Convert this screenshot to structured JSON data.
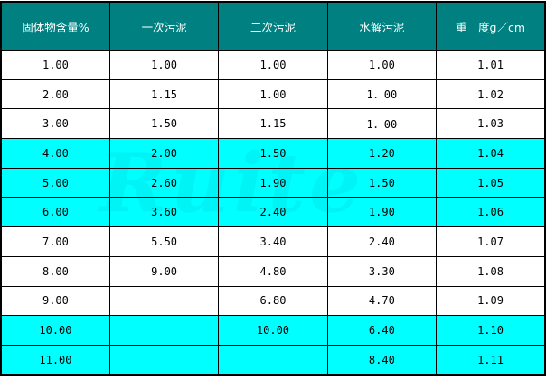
{
  "table": {
    "headers": [
      "固体物含量%",
      "一次污泥",
      "二次污泥",
      "水解污泥",
      "重　度g／cm"
    ],
    "rows": [
      [
        "1.00",
        "1.00",
        "1.00",
        "1.00",
        "1.01"
      ],
      [
        "2.00",
        "1.15",
        "1.00",
        "1．00",
        "1.02"
      ],
      [
        "3.00",
        "1.50",
        "1.15",
        "1．00",
        "1.03"
      ],
      [
        "4.00",
        "2.00",
        "1.50",
        "1.20",
        "1.04"
      ],
      [
        "5.00",
        "2.60",
        "1.90",
        "1.50",
        "1.05"
      ],
      [
        "6.00",
        "3.60",
        "2.40",
        "1.90",
        "1.06"
      ],
      [
        "7.00",
        "5.50",
        "3.40",
        "2.40",
        "1.07"
      ],
      [
        "8.00",
        "9.00",
        "4.80",
        "3.30",
        "1.08"
      ],
      [
        "9.00",
        "",
        "6.80",
        "4.70",
        "1.09"
      ],
      [
        "10.00",
        "",
        "10.00",
        "6.40",
        "1.10"
      ],
      [
        "11.00",
        "",
        "",
        "8.40",
        "1.11"
      ]
    ],
    "row_colors": [
      "white",
      "white",
      "white",
      "cyan",
      "cyan",
      "cyan",
      "white",
      "white",
      "white",
      "cyan",
      "cyan"
    ]
  },
  "colors": {
    "header_bg": "#008080",
    "highlight_row": "#00ffff"
  },
  "watermark": "Ruite 如克"
}
